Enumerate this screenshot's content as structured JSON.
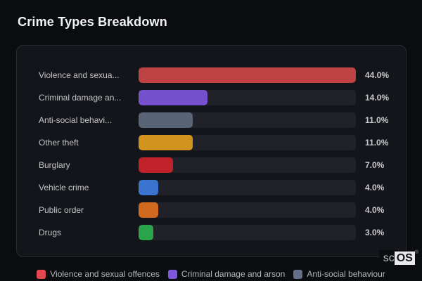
{
  "page": {
    "title": "Crime Types Breakdown",
    "background_color": "#0b0c10",
    "card_background": "#14151a",
    "card_border_color": "#2a2b31",
    "track_color": "#212229"
  },
  "chart_data": {
    "type": "bar",
    "orientation": "horizontal",
    "title": "Crime Types Breakdown",
    "categories": [
      "Violence and sexual offences",
      "Criminal damage and arson",
      "Anti-social behaviour",
      "Other theft",
      "Burglary",
      "Vehicle crime",
      "Public order",
      "Drugs"
    ],
    "display_labels": [
      "Violence and sexua...",
      "Criminal damage an...",
      "Anti-social behavi...",
      "Other theft",
      "Burglary",
      "Vehicle crime",
      "Public order",
      "Drugs"
    ],
    "values": [
      44.0,
      14.0,
      11.0,
      11.0,
      7.0,
      4.0,
      4.0,
      3.0
    ],
    "value_labels": [
      "44.0%",
      "14.0%",
      "11.0%",
      "11.0%",
      "7.0%",
      "4.0%",
      "4.0%",
      "3.0%"
    ],
    "unit": "%",
    "bar_colors": [
      "#bf4243",
      "#7551cd",
      "#596477",
      "#d2941c",
      "#bf2329",
      "#3b73d1",
      "#d16a1e",
      "#2aa34b"
    ],
    "max_scale": 44.0,
    "xlim": [
      0,
      44
    ],
    "grid": false,
    "value_labels_position": "right",
    "legend_position": "bottom"
  },
  "legend": {
    "items": [
      {
        "label": "Violence and sexual offences",
        "color": "#e5464f"
      },
      {
        "label": "Criminal damage and arson",
        "color": "#7e57dd"
      },
      {
        "label": "Anti-social behaviour",
        "color": "#64708a"
      }
    ]
  },
  "watermark": {
    "prefix": "sc",
    "boxed_text": "OS",
    "registered_mark": "®"
  }
}
